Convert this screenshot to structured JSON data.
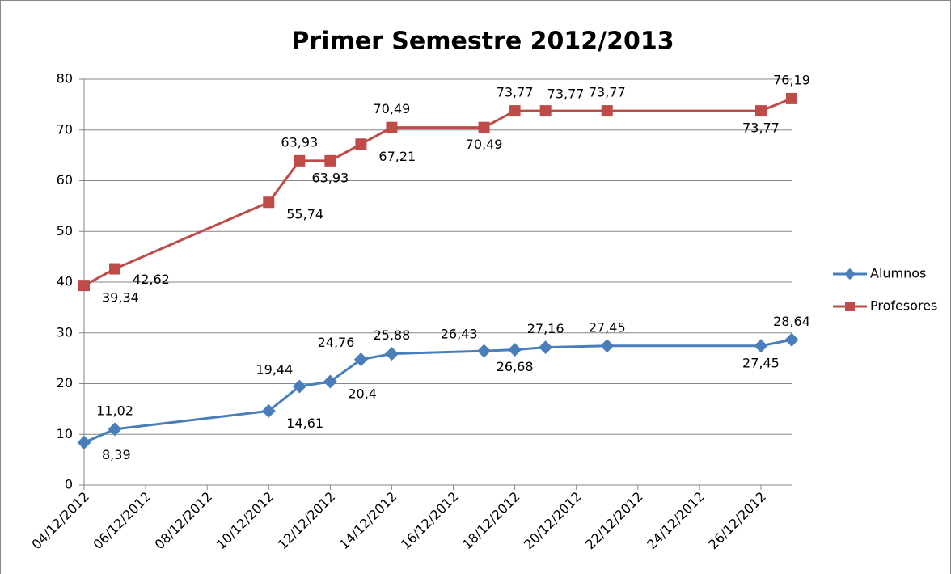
{
  "chart_data": {
    "type": "line",
    "title": "Primer Semestre 2012/2013",
    "x": [
      "2012-12-04",
      "2012-12-05",
      "2012-12-10",
      "2012-12-11",
      "2012-12-12",
      "2012-12-13",
      "2012-12-14",
      "2012-12-17",
      "2012-12-18",
      "2012-12-19",
      "2012-12-21",
      "2012-12-26",
      "2012-12-27"
    ],
    "series": [
      {
        "name": "Alumnos",
        "color": "#4a7ebb",
        "values": [
          8.39,
          11.02,
          14.61,
          19.44,
          20.4,
          24.76,
          25.88,
          26.43,
          26.68,
          27.16,
          27.45,
          27.45,
          28.64
        ],
        "value_labels": [
          "8,39",
          "11,02",
          "14,61",
          "19,44",
          "20,4",
          "24,76",
          "25,88",
          "26,43",
          "26,68",
          "27,16",
          "27,45",
          "27,45",
          "28,64"
        ]
      },
      {
        "name": "Profesores",
        "color": "#be4b48",
        "values": [
          39.34,
          42.62,
          55.74,
          63.93,
          63.93,
          67.21,
          70.49,
          70.49,
          73.77,
          73.77,
          73.77,
          73.77,
          76.19
        ],
        "value_labels": [
          "39,34",
          "42,62",
          "55,74",
          "63,93",
          "63,93",
          "67,21",
          "70,49",
          "70,49",
          "73,77",
          "73,77",
          "73,77",
          "73,77",
          "76,19"
        ]
      }
    ],
    "xlim": [
      "2012-12-04",
      "2012-12-27"
    ],
    "xticks": [
      {
        "value": "2012-12-04",
        "label": "04/12/2012"
      },
      {
        "value": "2012-12-06",
        "label": "06/12/2012"
      },
      {
        "value": "2012-12-08",
        "label": "08/12/2012"
      },
      {
        "value": "2012-12-10",
        "label": "10/12/2012"
      },
      {
        "value": "2012-12-12",
        "label": "12/12/2012"
      },
      {
        "value": "2012-12-14",
        "label": "14/12/2012"
      },
      {
        "value": "2012-12-16",
        "label": "16/12/2012"
      },
      {
        "value": "2012-12-18",
        "label": "18/12/2012"
      },
      {
        "value": "2012-12-20",
        "label": "20/12/2012"
      },
      {
        "value": "2012-12-22",
        "label": "22/12/2012"
      },
      {
        "value": "2012-12-24",
        "label": "24/12/2012"
      },
      {
        "value": "2012-12-26",
        "label": "26/12/2012"
      }
    ],
    "ylim": [
      0,
      80
    ],
    "yticks": [
      0,
      10,
      20,
      30,
      40,
      50,
      60,
      70,
      80
    ],
    "grid": true,
    "legend": "right"
  }
}
